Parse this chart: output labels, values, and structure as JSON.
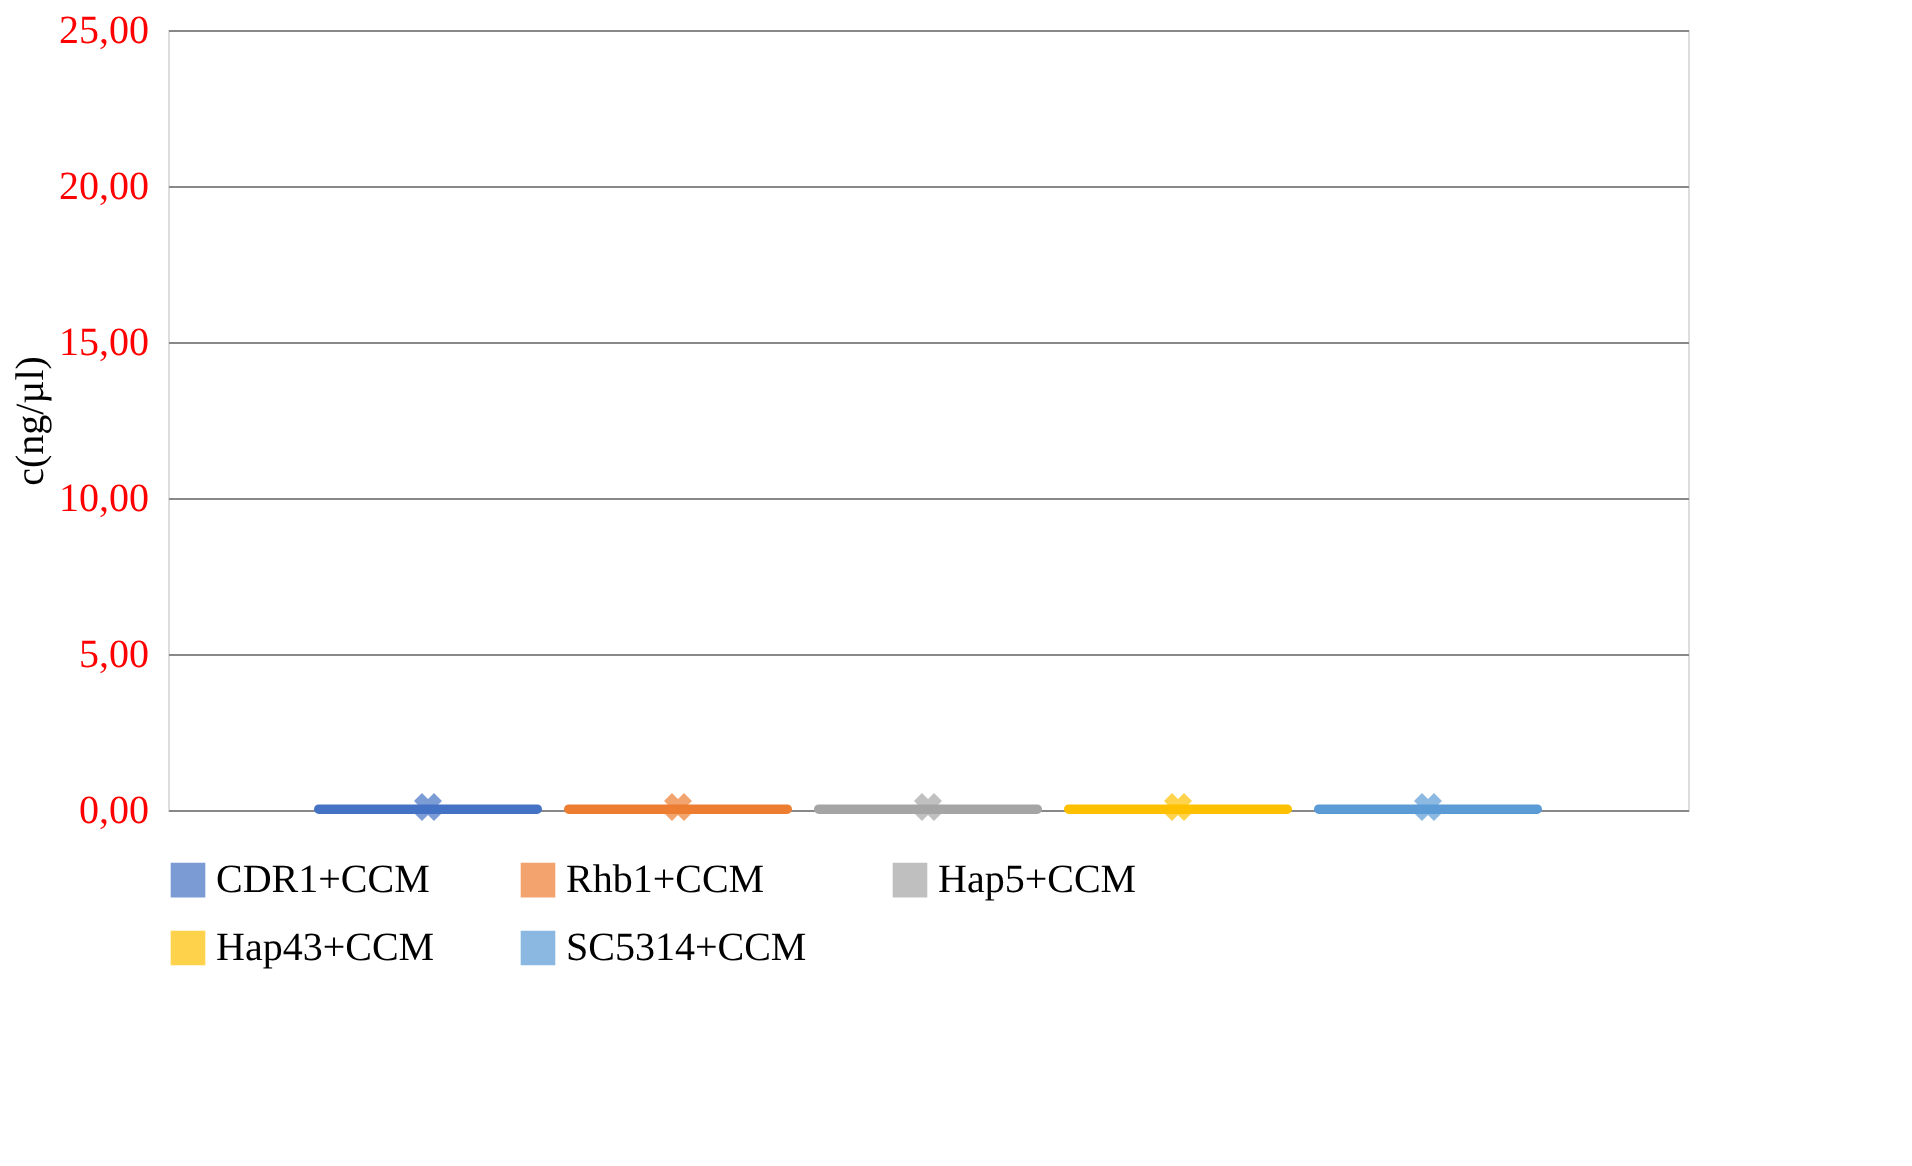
{
  "chart_data": {
    "type": "box",
    "ylabel": "c(ng/µl)",
    "categories": [
      null
    ],
    "ylim": [
      0,
      25
    ],
    "yticks": [
      {
        "value": 0,
        "label": "0,00"
      },
      {
        "value": 5,
        "label": "5,00"
      },
      {
        "value": 10,
        "label": "10,00"
      },
      {
        "value": 15,
        "label": "15,00"
      },
      {
        "value": 20,
        "label": "20,00"
      },
      {
        "value": 25,
        "label": "25,00"
      }
    ],
    "grid": "y",
    "legend": "bottom",
    "marker": "cross",
    "series": [
      {
        "name": "CDR1+CCM",
        "color": "#4472c4",
        "boxes": [
          {
            "low": 0,
            "q1": 0,
            "median": 0.02,
            "q3": 0.05,
            "high": 0.1,
            "mean": 0.1
          }
        ]
      },
      {
        "name": "Rhb1+CCM",
        "color": "#ed7d31",
        "boxes": [
          {
            "low": 0,
            "q1": 0,
            "median": 0.02,
            "q3": 0.05,
            "high": 0.1,
            "mean": 0.1
          }
        ]
      },
      {
        "name": "Hap5+CCM",
        "color": "#a5a5a5",
        "boxes": [
          {
            "low": 0,
            "q1": 0,
            "median": 0.02,
            "q3": 0.05,
            "high": 0.1,
            "mean": 0.1
          }
        ]
      },
      {
        "name": "Hap43+CCM",
        "color": "#ffc000",
        "boxes": [
          {
            "low": 0,
            "q1": 0,
            "median": 0.02,
            "q3": 0.05,
            "high": 0.1,
            "mean": 0.1
          }
        ]
      },
      {
        "name": "SC5314+CCM",
        "color": "#5b9bd5",
        "boxes": [
          {
            "low": 0,
            "q1": 0,
            "median": 0.02,
            "q3": 0.05,
            "high": 0.1,
            "mean": 0.1
          }
        ]
      }
    ]
  }
}
